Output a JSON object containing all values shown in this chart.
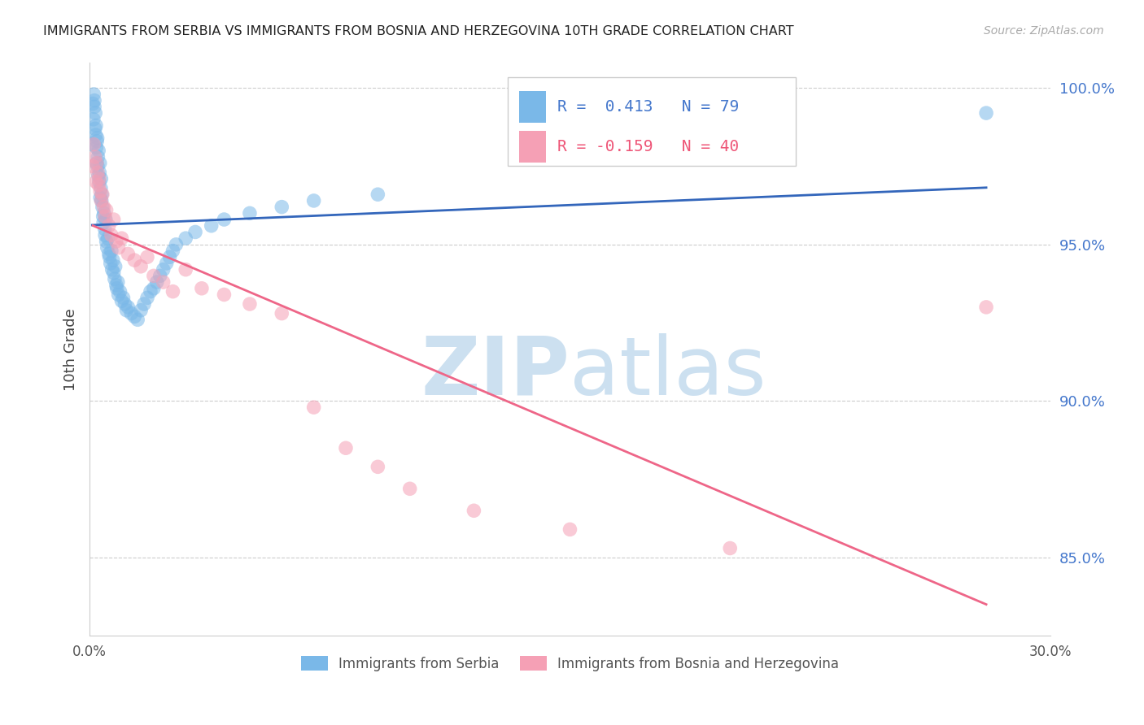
{
  "title": "IMMIGRANTS FROM SERBIA VS IMMIGRANTS FROM BOSNIA AND HERZEGOVINA 10TH GRADE CORRELATION CHART",
  "source": "Source: ZipAtlas.com",
  "ylabel": "10th Grade",
  "xlim": [
    0.0,
    0.3
  ],
  "ylim": [
    0.825,
    1.008
  ],
  "serbia_R": 0.413,
  "serbia_N": 79,
  "bosnia_R": -0.159,
  "bosnia_N": 40,
  "serbia_color": "#7ab8e8",
  "bosnia_color": "#f5a0b5",
  "serbia_line_color": "#3366bb",
  "bosnia_line_color": "#ee6688",
  "ytick_vals": [
    0.85,
    0.9,
    0.95,
    1.0
  ],
  "ytick_labels": [
    "85.0%",
    "90.0%",
    "95.0%",
    "100.0%"
  ],
  "serbia_x": [
    0.0008,
    0.001,
    0.0012,
    0.0013,
    0.0015,
    0.0015,
    0.0017,
    0.0018,
    0.0019,
    0.002,
    0.0021,
    0.0022,
    0.0023,
    0.0024,
    0.0025,
    0.0026,
    0.0027,
    0.0028,
    0.003,
    0.0031,
    0.0032,
    0.0033,
    0.0035,
    0.0036,
    0.0037,
    0.0038,
    0.004,
    0.0042,
    0.0043,
    0.0045,
    0.0047,
    0.0048,
    0.005,
    0.0052,
    0.0055,
    0.0057,
    0.006,
    0.0062,
    0.0065,
    0.0068,
    0.007,
    0.0073,
    0.0075,
    0.0078,
    0.008,
    0.0083,
    0.0085,
    0.0088,
    0.009,
    0.0095,
    0.01,
    0.0105,
    0.011,
    0.0115,
    0.012,
    0.013,
    0.014,
    0.015,
    0.016,
    0.017,
    0.018,
    0.019,
    0.02,
    0.021,
    0.022,
    0.023,
    0.024,
    0.025,
    0.026,
    0.027,
    0.03,
    0.033,
    0.038,
    0.042,
    0.05,
    0.06,
    0.07,
    0.09,
    0.28
  ],
  "serbia_y": [
    0.982,
    0.995,
    0.99,
    0.998,
    0.994,
    0.996,
    0.987,
    0.992,
    0.985,
    0.988,
    0.981,
    0.976,
    0.983,
    0.984,
    0.975,
    0.978,
    0.972,
    0.98,
    0.97,
    0.973,
    0.976,
    0.965,
    0.968,
    0.971,
    0.964,
    0.966,
    0.962,
    0.959,
    0.957,
    0.96,
    0.955,
    0.953,
    0.958,
    0.951,
    0.949,
    0.952,
    0.947,
    0.946,
    0.944,
    0.948,
    0.942,
    0.945,
    0.941,
    0.939,
    0.943,
    0.937,
    0.936,
    0.938,
    0.934,
    0.935,
    0.932,
    0.933,
    0.931,
    0.929,
    0.93,
    0.928,
    0.927,
    0.926,
    0.929,
    0.931,
    0.933,
    0.935,
    0.936,
    0.938,
    0.94,
    0.942,
    0.944,
    0.946,
    0.948,
    0.95,
    0.952,
    0.954,
    0.956,
    0.958,
    0.96,
    0.962,
    0.964,
    0.966,
    0.992
  ],
  "bosnia_x": [
    0.001,
    0.0013,
    0.0017,
    0.002,
    0.0022,
    0.0025,
    0.0028,
    0.003,
    0.0033,
    0.0036,
    0.004,
    0.0044,
    0.0048,
    0.0052,
    0.006,
    0.0068,
    0.0075,
    0.0083,
    0.009,
    0.01,
    0.012,
    0.014,
    0.016,
    0.018,
    0.02,
    0.023,
    0.026,
    0.03,
    0.035,
    0.042,
    0.05,
    0.06,
    0.07,
    0.08,
    0.09,
    0.1,
    0.12,
    0.15,
    0.2,
    0.28
  ],
  "bosnia_y": [
    0.975,
    0.982,
    0.978,
    0.97,
    0.976,
    0.973,
    0.969,
    0.971,
    0.967,
    0.964,
    0.966,
    0.962,
    0.959,
    0.961,
    0.956,
    0.953,
    0.958,
    0.951,
    0.949,
    0.952,
    0.947,
    0.945,
    0.943,
    0.946,
    0.94,
    0.938,
    0.935,
    0.942,
    0.936,
    0.934,
    0.931,
    0.928,
    0.898,
    0.885,
    0.879,
    0.872,
    0.865,
    0.859,
    0.853,
    0.93
  ]
}
